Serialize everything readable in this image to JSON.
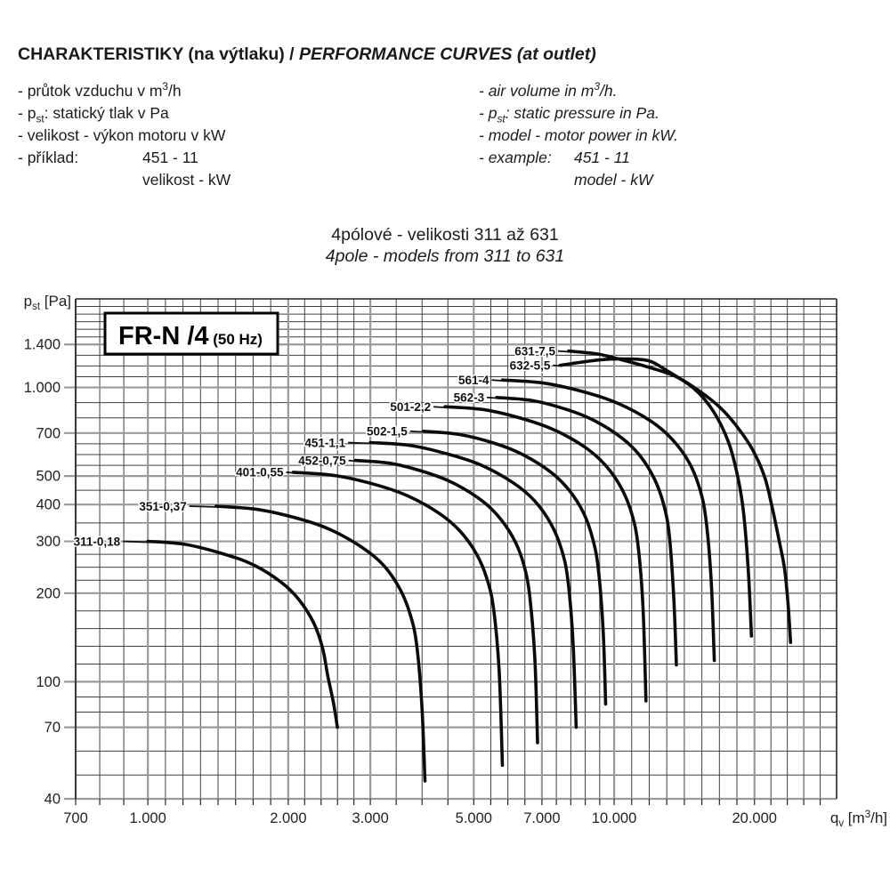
{
  "header": {
    "title_cs": "CHARAKTERISTIKY (na výtlaku) / ",
    "title_en": "PERFORMANCE CURVES (at outlet)",
    "notes_cs": [
      "- průtok vzduchu v m^3^/h",
      "- p~st~: statický tlak v Pa",
      "- velikost - výkon motoru v kW"
    ],
    "example_cs": {
      "label": "- příklad:",
      "value": "451 - 11",
      "sub": "velikost - kW"
    },
    "notes_en": [
      "- air volume in m^3^/h.",
      "- p~st~: static pressure in Pa.",
      "- model - motor power in kW."
    ],
    "example_en": {
      "label": "- example:",
      "value": "451 - 11",
      "sub": "model - kW"
    },
    "subtitle_cs": "4pólové - velikosti 311 až 631",
    "subtitle_en": "4pole - models from 311 to 631"
  },
  "colors": {
    "curve": "#0b0b0b",
    "grid_major": "#9a9a9a",
    "grid_minor": "#414141",
    "text": "#222222"
  },
  "chart_data": {
    "type": "line",
    "title_box": {
      "model": "FR-N /4",
      "frequency": "(50 Hz)"
    },
    "xlabel": "q~v~ [m^3^/h]",
    "ylabel": "p~st~ [Pa]",
    "x_axis": {
      "scale": "log",
      "min": 700,
      "max": 30000,
      "ticks": [
        {
          "value": 700,
          "label": "700"
        },
        {
          "value": 1000,
          "label": "1.000"
        },
        {
          "value": 2000,
          "label": "2.000"
        },
        {
          "value": 3000,
          "label": "3.000"
        },
        {
          "value": 5000,
          "label": "5.000"
        },
        {
          "value": 7000,
          "label": "7.000"
        },
        {
          "value": 10000,
          "label": "10.000"
        },
        {
          "value": 20000,
          "label": "20.000"
        }
      ],
      "edges": [
        700,
        1000,
        2000,
        3000,
        5000,
        7000,
        10000,
        20000,
        30000
      ],
      "subdivisions": [
        3,
        8,
        5,
        4,
        4,
        5,
        8,
        5
      ]
    },
    "y_axis": {
      "scale": "log",
      "min": 40,
      "max": 2000,
      "ticks": [
        {
          "value": 40,
          "label": "40"
        },
        {
          "value": 70,
          "label": "70"
        },
        {
          "value": 100,
          "label": "100"
        },
        {
          "value": 200,
          "label": "200"
        },
        {
          "value": 300,
          "label": "300"
        },
        {
          "value": 400,
          "label": "400"
        },
        {
          "value": 500,
          "label": "500"
        },
        {
          "value": 700,
          "label": "700"
        },
        {
          "value": 1000,
          "label": "1.000"
        },
        {
          "value": 1400,
          "label": "1.400"
        }
      ],
      "edges": [
        40,
        70,
        100,
        200,
        300,
        400,
        500,
        700,
        1000,
        1400,
        2000
      ],
      "subdivisions": [
        3,
        3,
        5,
        4,
        2,
        2,
        4,
        3,
        4,
        6
      ]
    },
    "series": [
      {
        "name": "311-0,18",
        "leader": 28,
        "points": [
          [
            1000,
            300
          ],
          [
            1200,
            293
          ],
          [
            1450,
            272
          ],
          [
            1680,
            250
          ],
          [
            1930,
            218
          ],
          [
            2110,
            190
          ],
          [
            2270,
            158
          ],
          [
            2370,
            130
          ],
          [
            2430,
            105
          ],
          [
            2500,
            85
          ],
          [
            2550,
            70
          ]
        ]
      },
      {
        "name": "351-0,37",
        "leader": 30,
        "points": [
          [
            1400,
            395
          ],
          [
            1720,
            385
          ],
          [
            2120,
            357
          ],
          [
            2470,
            328
          ],
          [
            2880,
            286
          ],
          [
            3200,
            249
          ],
          [
            3470,
            207
          ],
          [
            3650,
            170
          ],
          [
            3770,
            134
          ],
          [
            3870,
            83
          ],
          [
            3930,
            46
          ]
        ]
      },
      {
        "name": "401-0,55",
        "leader": 8,
        "points": [
          [
            2050,
            515
          ],
          [
            2520,
            502
          ],
          [
            3100,
            466
          ],
          [
            3620,
            427
          ],
          [
            4220,
            373
          ],
          [
            4680,
            324
          ],
          [
            5080,
            270
          ],
          [
            5350,
            221
          ],
          [
            5520,
            175
          ],
          [
            5670,
            108
          ],
          [
            5760,
            52
          ]
        ]
      },
      {
        "name": "452-0,75",
        "leader": 8,
        "points": [
          [
            2790,
            565
          ],
          [
            3340,
            551
          ],
          [
            4000,
            511
          ],
          [
            4570,
            469
          ],
          [
            5230,
            410
          ],
          [
            5720,
            356
          ],
          [
            6150,
            297
          ],
          [
            6430,
            243
          ],
          [
            6600,
            192
          ],
          [
            6760,
            119
          ],
          [
            6850,
            62
          ]
        ]
      },
      {
        "name": "451-1,1",
        "leader": 25,
        "points": [
          [
            3000,
            650
          ],
          [
            3680,
            634
          ],
          [
            4500,
            588
          ],
          [
            5250,
            540
          ],
          [
            6110,
            471
          ],
          [
            6770,
            410
          ],
          [
            7340,
            341
          ],
          [
            7720,
            280
          ],
          [
            7960,
            221
          ],
          [
            8160,
            137
          ],
          [
            8290,
            70
          ]
        ]
      },
      {
        "name": "502-1,5",
        "leader": 15,
        "points": [
          [
            3900,
            710
          ],
          [
            4670,
            692
          ],
          [
            5590,
            643
          ],
          [
            6400,
            589
          ],
          [
            7320,
            515
          ],
          [
            8010,
            447
          ],
          [
            8610,
            373
          ],
          [
            9000,
            305
          ],
          [
            9250,
            241
          ],
          [
            9470,
            149
          ],
          [
            9590,
            84
          ]
        ]
      },
      {
        "name": "501-2,2",
        "leader": 13,
        "points": [
          [
            4340,
            860
          ],
          [
            5300,
            839
          ],
          [
            6450,
            778
          ],
          [
            7490,
            714
          ],
          [
            8690,
            624
          ],
          [
            9600,
            542
          ],
          [
            10390,
            452
          ],
          [
            10920,
            370
          ],
          [
            11250,
            292
          ],
          [
            11530,
            181
          ],
          [
            11700,
            86
          ]
        ]
      },
      {
        "name": "562-3",
        "leader": 11,
        "points": [
          [
            5600,
            925
          ],
          [
            6690,
            902
          ],
          [
            7990,
            837
          ],
          [
            9120,
            768
          ],
          [
            10420,
            671
          ],
          [
            11390,
            583
          ],
          [
            12220,
            486
          ],
          [
            12780,
            398
          ],
          [
            13130,
            315
          ],
          [
            13420,
            194
          ],
          [
            13600,
            114
          ]
        ]
      },
      {
        "name": "561-4",
        "leader": 12,
        "points": [
          [
            5760,
            1060
          ],
          [
            7100,
            1034
          ],
          [
            8760,
            959
          ],
          [
            10240,
            880
          ],
          [
            11980,
            769
          ],
          [
            13300,
            668
          ],
          [
            14470,
            557
          ],
          [
            15240,
            456
          ],
          [
            15720,
            360
          ],
          [
            16140,
            223
          ],
          [
            16400,
            118
          ]
        ]
      },
      {
        "name": "632-5,5",
        "leader": 8,
        "points": [
          [
            7660,
            1190
          ],
          [
            9250,
            1240
          ],
          [
            10500,
            1250
          ],
          [
            11800,
            1235
          ],
          [
            12880,
            1150
          ],
          [
            14850,
            990
          ],
          [
            16320,
            830
          ],
          [
            17600,
            650
          ],
          [
            18450,
            490
          ],
          [
            18970,
            370
          ],
          [
            19420,
            230
          ],
          [
            19700,
            143
          ]
        ]
      },
      {
        "name": "631-7,5",
        "leader": 12,
        "points": [
          [
            7990,
            1330
          ],
          [
            9200,
            1300
          ],
          [
            10430,
            1240
          ],
          [
            12000,
            1165
          ],
          [
            13600,
            1087
          ],
          [
            15200,
            975
          ],
          [
            16900,
            853
          ],
          [
            18300,
            740
          ],
          [
            19750,
            620
          ],
          [
            21000,
            500
          ],
          [
            21800,
            394
          ],
          [
            22600,
            300
          ],
          [
            23200,
            242
          ],
          [
            23600,
            185
          ],
          [
            23900,
            136
          ]
        ]
      }
    ]
  }
}
